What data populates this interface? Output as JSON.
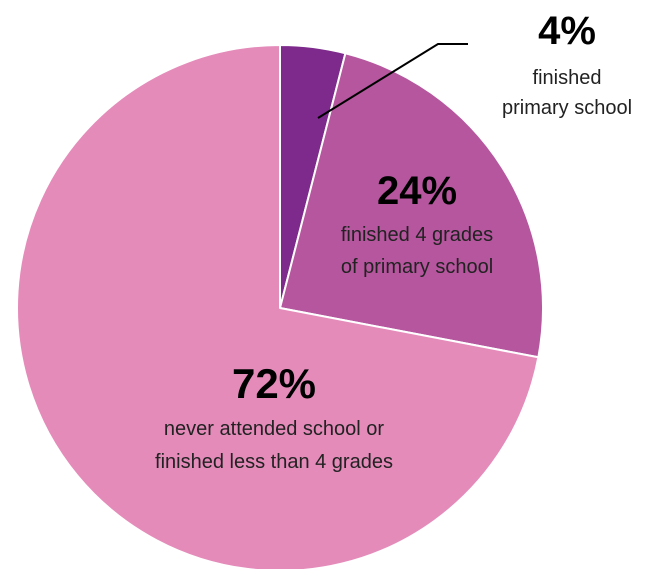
{
  "chart_data": {
    "type": "pie",
    "title": "",
    "start_angle_deg": 0,
    "direction": "clockwise",
    "slices": [
      {
        "value": 4,
        "label": "4%",
        "desc_lines": [
          "finished",
          "primary school"
        ],
        "color": "#7d2a8c",
        "label_style": "leader-line"
      },
      {
        "value": 24,
        "label": "24%",
        "desc_lines": [
          "finished 4 grades",
          "of primary school"
        ],
        "color": "#b5569e",
        "label_style": "inside"
      },
      {
        "value": 72,
        "label": "72%",
        "desc_lines": [
          "never attended school or",
          "finished less than 4 grades"
        ],
        "color": "#e48bba",
        "label_style": "inside"
      }
    ],
    "legend": "none"
  }
}
